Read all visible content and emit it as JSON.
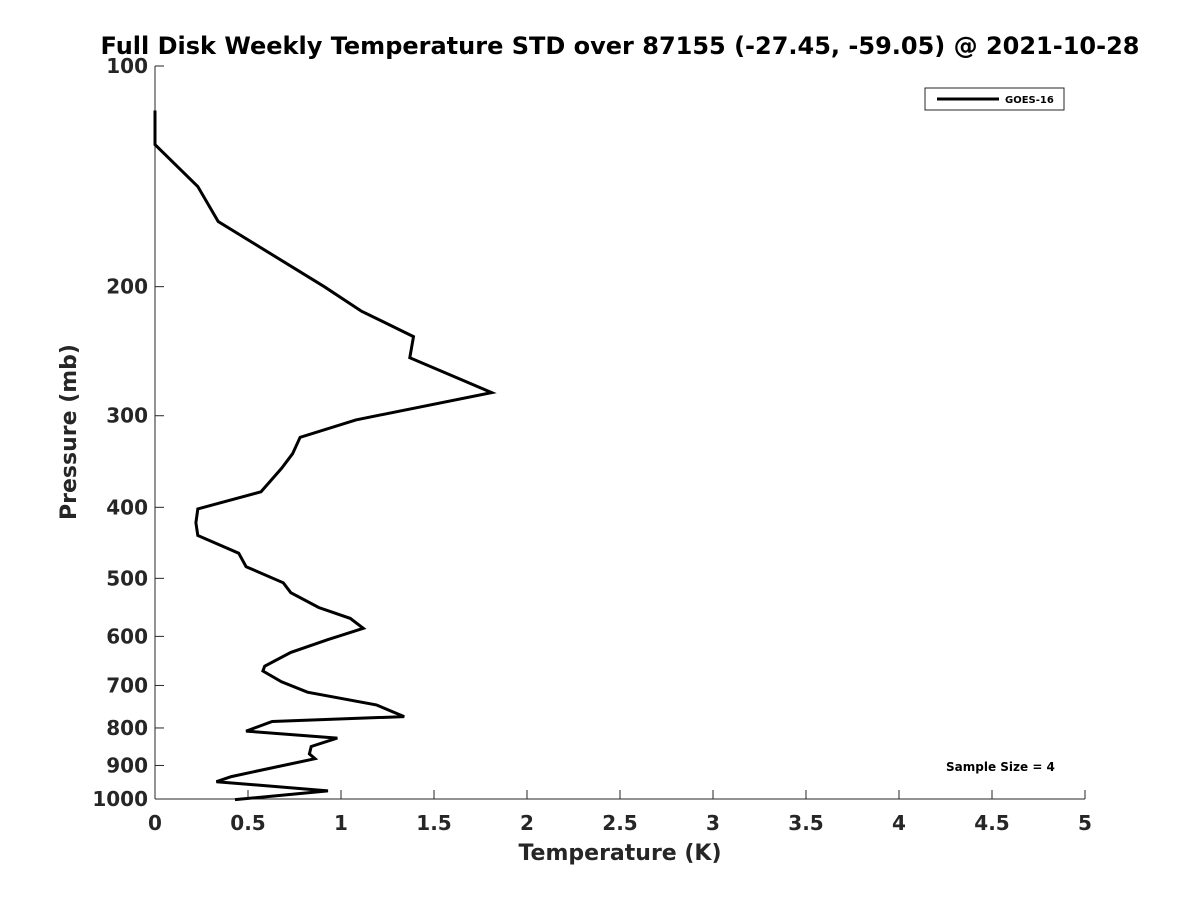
{
  "chart_data": {
    "type": "line",
    "title": "Full Disk Weekly Temperature STD over 87155 (-27.45, -59.05) @ 2021-10-28",
    "xlabel": "Temperature (K)",
    "ylabel": "Pressure (mb)",
    "xlim": [
      0,
      5
    ],
    "ylim": [
      100,
      1000
    ],
    "y_scale": "log",
    "y_reversed": true,
    "xticks": [
      "0",
      "0.5",
      "1",
      "1.5",
      "2",
      "2.5",
      "3",
      "3.5",
      "4",
      "4.5",
      "5"
    ],
    "yticks": [
      "100",
      "200",
      "300",
      "400",
      "500",
      "600",
      "700",
      "800",
      "900",
      "1000"
    ],
    "legend": {
      "position": "top-right"
    },
    "annotation": "Sample Size = 4",
    "series": [
      {
        "name": "GOES-16",
        "color": "#000000",
        "x": [
          0.0,
          0.0,
          0.0,
          0.23,
          0.34,
          0.91,
          1.11,
          1.39,
          1.37,
          1.81,
          1.08,
          0.78,
          0.74,
          0.68,
          0.57,
          0.23,
          0.22,
          0.23,
          0.45,
          0.49,
          0.69,
          0.73,
          0.88,
          1.05,
          1.12,
          0.93,
          0.73,
          0.59,
          0.58,
          0.68,
          0.82,
          1.19,
          1.34,
          0.63,
          0.49,
          0.98,
          0.84,
          0.83,
          0.86,
          0.6,
          0.41,
          0.33,
          0.93,
          0.43
        ],
        "y": [
          115,
          124,
          128,
          146,
          163,
          200,
          216,
          234,
          250,
          279,
          304,
          321,
          338,
          354,
          381,
          402,
          420,
          437,
          462,
          482,
          507,
          523,
          548,
          567,
          585,
          606,
          631,
          659,
          669,
          692,
          715,
          744,
          772,
          784,
          808,
          826,
          848,
          868,
          881,
          910,
          932,
          947,
          975,
          1002
        ]
      }
    ]
  }
}
